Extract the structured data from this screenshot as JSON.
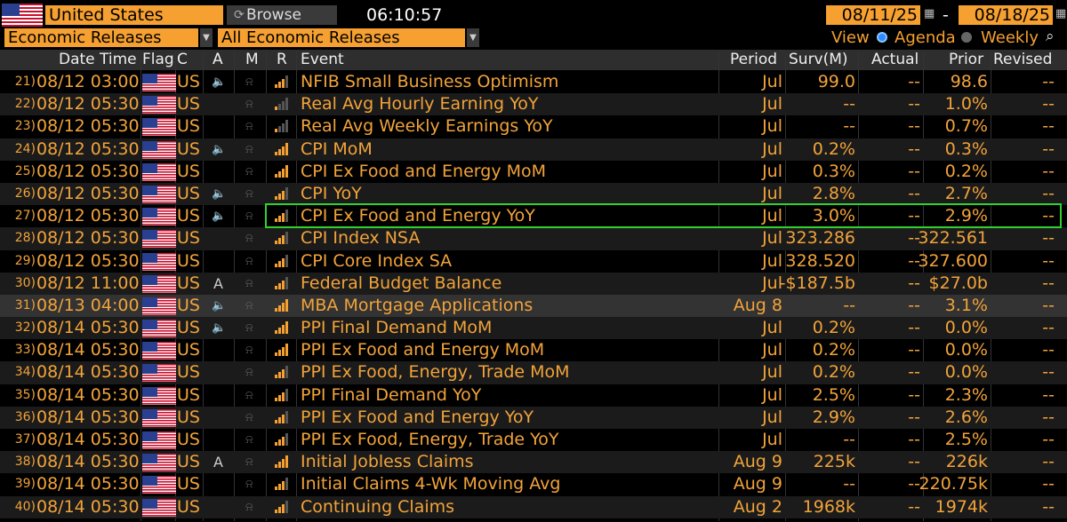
{
  "toolbar": {
    "country": "United States",
    "browse": "Browse",
    "time": "06:10:57",
    "start_date": "08/11/25",
    "range_sep": "-",
    "end_date": "08/18/25"
  },
  "filters": {
    "category": "Economic Releases",
    "subcategory": "All Economic Releases",
    "view_label": "View",
    "agenda": "Agenda",
    "weekly": "Weekly"
  },
  "columns": {
    "datetime": "Date Time",
    "flag": "Flag",
    "c": "C",
    "a": "A",
    "m": "M",
    "r": "R",
    "event": "Event",
    "period": "Period",
    "surv": "Surv(M)",
    "actual": "Actual",
    "prior": "Prior",
    "revised": "Revised"
  },
  "rows": [
    {
      "idx": "21)",
      "dt": "08/12 03:00",
      "c": "US",
      "a": "🔈",
      "event": "NFIB Small Business Optimism",
      "period": "Jul",
      "surv": "99.0",
      "actual": "--",
      "prior": "98.6",
      "revised": "--",
      "sig": 3
    },
    {
      "idx": "22)",
      "dt": "08/12 05:30",
      "c": "US",
      "a": "",
      "event": "Real Avg Hourly Earning YoY",
      "period": "Jul",
      "surv": "--",
      "actual": "--",
      "prior": "1.0%",
      "revised": "--",
      "sig": 1
    },
    {
      "idx": "23)",
      "dt": "08/12 05:30",
      "c": "US",
      "a": "",
      "event": "Real Avg Weekly Earnings YoY",
      "period": "Jul",
      "surv": "--",
      "actual": "--",
      "prior": "0.7%",
      "revised": "--",
      "sig": 1
    },
    {
      "idx": "24)",
      "dt": "08/12 05:30",
      "c": "US",
      "a": "🔈",
      "event": "CPI MoM",
      "period": "Jul",
      "surv": "0.2%",
      "actual": "--",
      "prior": "0.3%",
      "revised": "--",
      "sig": 4
    },
    {
      "idx": "25)",
      "dt": "08/12 05:30",
      "c": "US",
      "a": "",
      "event": "CPI Ex Food and Energy MoM",
      "period": "Jul",
      "surv": "0.3%",
      "actual": "--",
      "prior": "0.2%",
      "revised": "--",
      "sig": 4
    },
    {
      "idx": "26)",
      "dt": "08/12 05:30",
      "c": "US",
      "a": "🔈",
      "event": "CPI YoY",
      "period": "Jul",
      "surv": "2.8%",
      "actual": "--",
      "prior": "2.7%",
      "revised": "--",
      "sig": 3
    },
    {
      "idx": "27)",
      "dt": "08/12 05:30",
      "c": "US",
      "a": "🔈",
      "event": "CPI Ex Food and Energy YoY",
      "period": "Jul",
      "surv": "3.0%",
      "actual": "--",
      "prior": "2.9%",
      "revised": "--",
      "sig": 3
    },
    {
      "idx": "28)",
      "dt": "08/12 05:30",
      "c": "US",
      "a": "",
      "event": "CPI Index NSA",
      "period": "Jul",
      "surv": "323.286",
      "actual": "--",
      "prior": "322.561",
      "revised": "--",
      "sig": 3
    },
    {
      "idx": "29)",
      "dt": "08/12 05:30",
      "c": "US",
      "a": "",
      "event": "CPI Core Index SA",
      "period": "Jul",
      "surv": "328.520",
      "actual": "--",
      "prior": "327.600",
      "revised": "--",
      "sig": 3
    },
    {
      "idx": "30)",
      "dt": "08/12 11:00",
      "c": "US",
      "a": "A",
      "event": "Federal Budget Balance",
      "period": "Jul",
      "surv": "-$187.5b",
      "actual": "--",
      "prior": "$27.0b",
      "revised": "--",
      "sig": 3
    },
    {
      "idx": "31)",
      "dt": "08/13 04:00",
      "c": "US",
      "a": "🔈",
      "event": "MBA Mortgage Applications",
      "period": "Aug 8",
      "surv": "--",
      "actual": "--",
      "prior": "3.1%",
      "revised": "--",
      "sig": 4
    },
    {
      "idx": "32)",
      "dt": "08/14 05:30",
      "c": "US",
      "a": "🔈",
      "event": "PPI Final Demand MoM",
      "period": "Jul",
      "surv": "0.2%",
      "actual": "--",
      "prior": "0.0%",
      "revised": "--",
      "sig": 4
    },
    {
      "idx": "33)",
      "dt": "08/14 05:30",
      "c": "US",
      "a": "",
      "event": "PPI Ex Food and Energy MoM",
      "period": "Jul",
      "surv": "0.2%",
      "actual": "--",
      "prior": "0.0%",
      "revised": "--",
      "sig": 4
    },
    {
      "idx": "34)",
      "dt": "08/14 05:30",
      "c": "US",
      "a": "",
      "event": "PPI Ex Food, Energy, Trade MoM",
      "period": "Jul",
      "surv": "0.2%",
      "actual": "--",
      "prior": "0.0%",
      "revised": "--",
      "sig": 3
    },
    {
      "idx": "35)",
      "dt": "08/14 05:30",
      "c": "US",
      "a": "",
      "event": "PPI Final Demand YoY",
      "period": "Jul",
      "surv": "2.5%",
      "actual": "--",
      "prior": "2.3%",
      "revised": "--",
      "sig": 3
    },
    {
      "idx": "36)",
      "dt": "08/14 05:30",
      "c": "US",
      "a": "",
      "event": "PPI Ex Food and Energy YoY",
      "period": "Jul",
      "surv": "2.9%",
      "actual": "--",
      "prior": "2.6%",
      "revised": "--",
      "sig": 3
    },
    {
      "idx": "37)",
      "dt": "08/14 05:30",
      "c": "US",
      "a": "",
      "event": "PPI Ex Food, Energy, Trade YoY",
      "period": "Jul",
      "surv": "--",
      "actual": "--",
      "prior": "2.5%",
      "revised": "--",
      "sig": 3
    },
    {
      "idx": "38)",
      "dt": "08/14 05:30",
      "c": "US",
      "a": "A",
      "event": "Initial Jobless Claims",
      "period": "Aug 9",
      "surv": "225k",
      "actual": "--",
      "prior": "226k",
      "revised": "--",
      "sig": 4
    },
    {
      "idx": "39)",
      "dt": "08/14 05:30",
      "c": "US",
      "a": "",
      "event": "Initial Claims 4-Wk Moving Avg",
      "period": "Aug 9",
      "surv": "--",
      "actual": "--",
      "prior": "220.75k",
      "revised": "--",
      "sig": 3
    },
    {
      "idx": "40)",
      "dt": "08/14 05:30",
      "c": "US",
      "a": "",
      "event": "Continuing Claims",
      "period": "Aug 2",
      "surv": "1968k",
      "actual": "--",
      "prior": "1974k",
      "revised": "--",
      "sig": 3
    }
  ],
  "highlight": {
    "row_index": 6,
    "color": "#2fd12f"
  },
  "colors": {
    "accent": "#f5a030",
    "text": "#f2a33a"
  }
}
